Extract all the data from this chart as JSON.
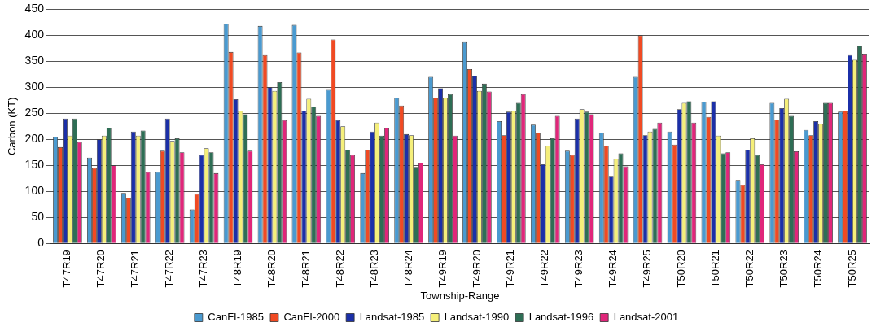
{
  "chart_data": {
    "type": "bar",
    "xlabel": "Township-Range",
    "ylabel": "Carbon (KT)",
    "categories": [
      "T47R19",
      "T47R20",
      "T47R21",
      "T47R22",
      "T47R23",
      "T48R19",
      "T48R20",
      "T48R21",
      "T48R22",
      "T48R23",
      "T48R24",
      "T49R19",
      "T49R20",
      "T49R21",
      "T49R22",
      "T49R23",
      "T49R24",
      "T49R25",
      "T50R20",
      "T50R21",
      "T50R22",
      "T50R23",
      "T50R24",
      "T50R25"
    ],
    "series": [
      {
        "name": "CanFI-1985",
        "color": "#4a9ad0",
        "values": [
          205,
          165,
          97,
          137,
          65,
          422,
          418,
          420,
          295,
          135,
          280,
          320,
          387,
          235,
          228,
          178,
          213,
          320,
          215,
          272,
          122,
          270,
          218,
          253
        ]
      },
      {
        "name": "CanFI-2000",
        "color": "#f04a23",
        "values": [
          185,
          145,
          88,
          178,
          95,
          368,
          362,
          367,
          392,
          180,
          265,
          280,
          335,
          208,
          213,
          170,
          188,
          400,
          190,
          243,
          112,
          238,
          208,
          255
        ]
      },
      {
        "name": "Landsat-1985",
        "color": "#1b2fa8",
        "values": [
          240,
          200,
          215,
          240,
          170,
          277,
          300,
          255,
          237,
          215,
          210,
          298,
          322,
          253,
          152,
          240,
          128,
          208,
          258,
          273,
          180,
          260,
          235,
          362
        ]
      },
      {
        "name": "Landsat-1990",
        "color": "#f5ef7a",
        "values": [
          207,
          207,
          207,
          197,
          183,
          255,
          293,
          278,
          225,
          232,
          208,
          280,
          293,
          255,
          188,
          258,
          163,
          215,
          270,
          207,
          202,
          278,
          230,
          353
        ]
      },
      {
        "name": "Landsat-1996",
        "color": "#2e6e55",
        "values": [
          240,
          222,
          217,
          202,
          175,
          248,
          310,
          263,
          180,
          207,
          147,
          287,
          307,
          270,
          202,
          253,
          173,
          220,
          273,
          173,
          170,
          245,
          270,
          380
        ]
      },
      {
        "name": "Landsat-2001",
        "color": "#e0267a",
        "values": [
          195,
          150,
          137,
          175,
          135,
          178,
          237,
          245,
          170,
          222,
          155,
          207,
          292,
          287,
          245,
          248,
          148,
          232,
          232,
          175,
          152,
          177,
          270,
          363
        ]
      }
    ],
    "ylim": [
      0,
      450
    ],
    "yticks": [
      0,
      50,
      100,
      150,
      200,
      250,
      300,
      350,
      400,
      450
    ],
    "grid": "y",
    "legend": "bottom"
  }
}
